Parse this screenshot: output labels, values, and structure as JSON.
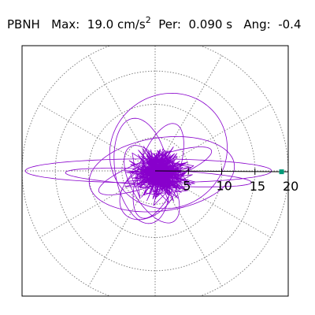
{
  "header": {
    "station": "PBNH",
    "max_label": "Max:",
    "max_value": "19.0 cm/s",
    "max_exp": "2",
    "per_label": "Per:",
    "per_value": "0.090 s",
    "ang_label": "Ang:",
    "ang_value": "-0.4"
  },
  "colors": {
    "trace": "#8800cc",
    "marker": "#009977",
    "grid": "#808080",
    "frame": "#000000"
  },
  "chart_data": {
    "type": "polar-particle-motion",
    "units": "cm/s^2",
    "r_max": 20,
    "ring_values": [
      5,
      10,
      15,
      20
    ],
    "radial_tick_labels": [
      "5",
      "10",
      "15",
      "20"
    ],
    "radial_spoke_angles_deg": [
      0,
      30,
      60,
      90,
      120,
      150,
      180,
      210,
      240,
      270,
      300,
      330
    ],
    "axis_angle_deg": -0.4,
    "peak_point": {
      "r": 19.0,
      "angle_deg": -0.4
    },
    "grid": true,
    "trace_loops": [
      {
        "ax": 18.5,
        "ay": 1.8,
        "rot_deg": 0,
        "cx": -1.0,
        "cy": 0.0
      },
      {
        "ax": 11.0,
        "ay": 5.5,
        "rot_deg": 8,
        "cx": 1.0,
        "cy": -0.5
      },
      {
        "ax": 9.0,
        "ay": 8.5,
        "rot_deg": 35,
        "cx": 2.0,
        "cy": 3.0
      },
      {
        "ax": 7.5,
        "ay": 3.0,
        "rot_deg": 70,
        "cx": 0.5,
        "cy": 0.0
      },
      {
        "ax": 6.5,
        "ay": 3.0,
        "rot_deg": -60,
        "cx": -0.5,
        "cy": -2.0
      },
      {
        "ax": 14.0,
        "ay": 1.2,
        "rot_deg": -3,
        "cx": 0.5,
        "cy": -1.0
      },
      {
        "ax": 4.0,
        "ay": 8.0,
        "rot_deg": 10,
        "cx": -2.0,
        "cy": 0.0
      },
      {
        "ax": 5.0,
        "ay": 3.5,
        "rot_deg": 45,
        "cx": -1.0,
        "cy": -3.0
      },
      {
        "ax": 9.0,
        "ay": 2.0,
        "rot_deg": 20,
        "cx": 0.0,
        "cy": 0.0
      }
    ]
  }
}
